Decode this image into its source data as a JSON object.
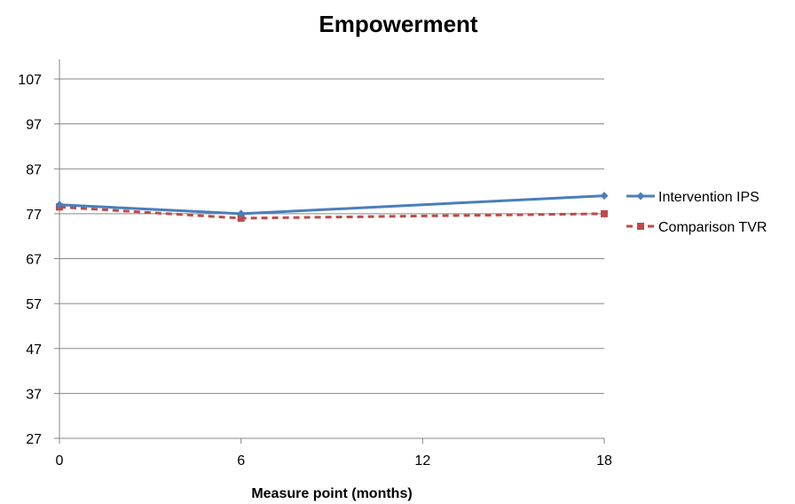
{
  "chart_data": {
    "type": "line",
    "title": "Empowerment",
    "xlabel": "Measure point (months)",
    "ylabel": "",
    "x": [
      0,
      6,
      18
    ],
    "xticks": [
      "0",
      "6",
      "12",
      "18"
    ],
    "xlim": [
      0,
      18
    ],
    "yticks": [
      "27",
      "37",
      "47",
      "57",
      "67",
      "77",
      "87",
      "97",
      "107"
    ],
    "ylim": [
      27,
      107
    ],
    "grid": "horizontal",
    "legend_position": "right",
    "series": [
      {
        "name": "Intervention IPS",
        "values": [
          79,
          77,
          81
        ],
        "color": "#4a7ebb",
        "marker": "diamond",
        "dash": "solid"
      },
      {
        "name": "Comparison TVR",
        "values": [
          78.5,
          76,
          77
        ],
        "color": "#be4b48",
        "marker": "square",
        "dash": "dashed"
      }
    ]
  }
}
